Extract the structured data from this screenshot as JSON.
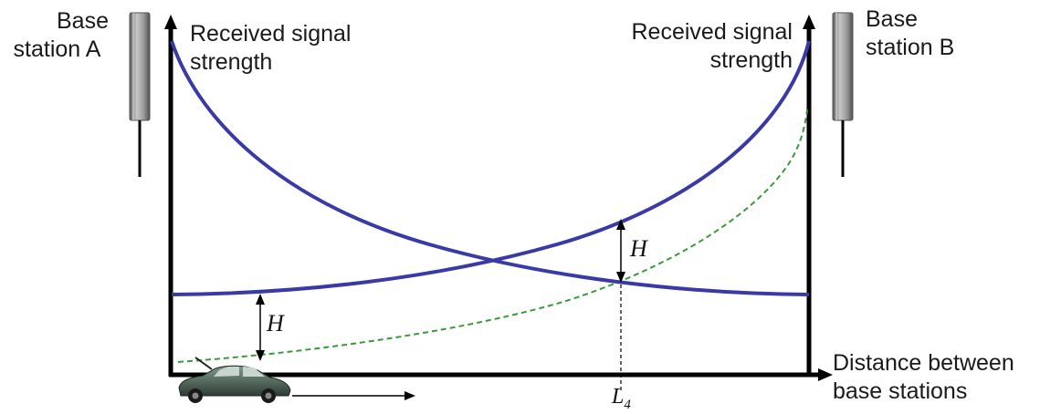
{
  "labels": {
    "base_a": [
      "Base",
      "station A"
    ],
    "base_b": [
      "Base",
      "station B"
    ],
    "y_axis_left": [
      "Received signal",
      "strength"
    ],
    "y_axis_right": [
      "Received signal",
      "strength"
    ],
    "x_axis": [
      "Distance between",
      "base stations"
    ],
    "hysteresis": "H",
    "threshold": "L",
    "threshold_sub": "4"
  },
  "colors": {
    "signal_curve": "#3a3aa6",
    "threshold_curve": "#3a9a3a",
    "axis": "#000000",
    "tower": "#8c8c8c"
  },
  "icons": [
    "antenna-icon",
    "car-icon",
    "arrow-right-icon"
  ]
}
